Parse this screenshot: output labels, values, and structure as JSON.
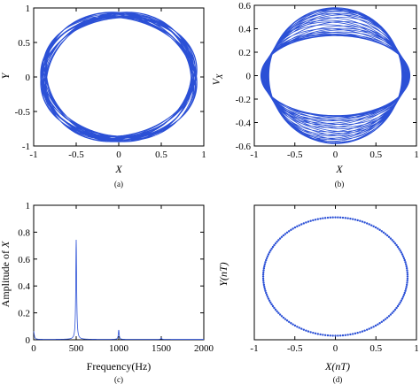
{
  "colors": {
    "series": "#2b50d6",
    "axis": "#000000"
  },
  "chart_data": [
    {
      "type": "line",
      "panel": "(a)",
      "xlabel": "X",
      "ylabel": "Y",
      "xlim": [
        -1,
        1
      ],
      "ylim": [
        -1,
        1
      ],
      "xticks": [
        -1,
        -0.5,
        0,
        0.5,
        1
      ],
      "yticks": [
        -1,
        -0.5,
        0,
        0.5,
        1
      ],
      "xtick_labels": [
        "-1",
        "-0.5",
        "0",
        "0.5",
        "1"
      ],
      "ytick_labels": [
        "-1",
        "-0.5",
        "0",
        "0.5",
        "1"
      ],
      "series": [
        {
          "shape": "quasi-periodic orbit band",
          "x_amplitude_range": [
            0.85,
            0.92
          ],
          "y_amplitude_range": [
            0.86,
            0.94
          ]
        }
      ]
    },
    {
      "type": "line",
      "panel": "(b)",
      "xlabel": "X",
      "ylabel": "V_X",
      "xlim": [
        -1,
        1
      ],
      "ylim": [
        -0.6,
        0.6
      ],
      "xticks": [
        -1,
        -0.5,
        0,
        0.5,
        1
      ],
      "yticks": [
        -0.6,
        -0.4,
        -0.2,
        0,
        0.2,
        0.4,
        0.6
      ],
      "xtick_labels": [
        "-1",
        "-0.5",
        "0",
        "0.5",
        "1"
      ],
      "ytick_labels": [
        "-0.6",
        "-0.4",
        "-0.2",
        "0",
        "0.2",
        "0.4",
        "0.6"
      ],
      "series": [
        {
          "shape": "phase portrait band",
          "x_amplitude_range": [
            0.82,
            0.92
          ],
          "v_amplitude_range": [
            0.34,
            0.58
          ]
        }
      ]
    },
    {
      "type": "line",
      "panel": "(c)",
      "xlabel": "Frequency(Hz)",
      "ylabel": "Amplitude of X",
      "xlim": [
        0,
        2000
      ],
      "ylim": [
        0,
        1
      ],
      "xticks": [
        0,
        500,
        1000,
        1500,
        2000
      ],
      "yticks": [
        0,
        0.2,
        0.4,
        0.6,
        0.8,
        1
      ],
      "xtick_labels": [
        "0",
        "500",
        "1000",
        "1500",
        "2000"
      ],
      "ytick_labels": [
        "0",
        "0.2",
        "0.4",
        "0.6",
        "0.8",
        "1"
      ],
      "series": [
        {
          "peaks": [
            {
              "x": 0,
              "y": 0.06
            },
            {
              "x": 500,
              "y": 0.74
            },
            {
              "x": 1000,
              "y": 0.07
            },
            {
              "x": 1500,
              "y": 0.01
            }
          ]
        }
      ]
    },
    {
      "type": "scatter",
      "panel": "(d)",
      "xlabel": "X(nT)",
      "ylabel": "Y(nT)",
      "xlim": [
        -1,
        1
      ],
      "ylim": [
        -1,
        1
      ],
      "xticks": [
        -1,
        -0.5,
        0,
        0.5,
        1
      ],
      "yticks": [],
      "xtick_labels": [
        "-1",
        "-0.5",
        "0",
        "0.5",
        "1"
      ],
      "ytick_labels": [],
      "series": [
        {
          "shape": "Poincare map closed circle",
          "center": [
            0,
            -0.06
          ],
          "radius_x": 0.89,
          "radius_y": 0.88,
          "points": 180
        }
      ]
    }
  ]
}
